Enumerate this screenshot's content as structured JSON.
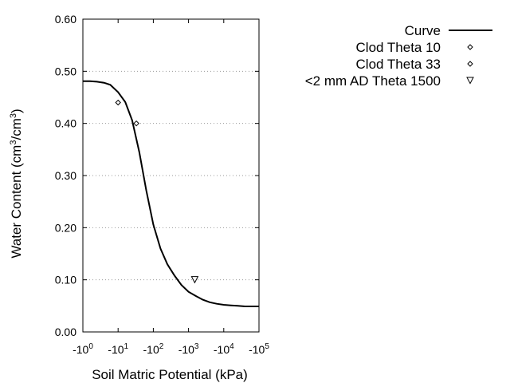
{
  "chart_data": {
    "type": "line",
    "xlabel": "Soil Matric Potential (kPa)",
    "ylabel_main": "Water Content (cm",
    "ylabel_sup1": "3",
    "ylabel_mid": "/cm",
    "ylabel_sup2": "3",
    "ylabel_end": ")",
    "x_scale": "log",
    "x_range_abs_kpa": [
      1,
      100000
    ],
    "x_ticks": [
      {
        "base": "-10",
        "exp": "0",
        "value": -1
      },
      {
        "base": "-10",
        "exp": "1",
        "value": -10
      },
      {
        "base": "-10",
        "exp": "2",
        "value": -100
      },
      {
        "base": "-10",
        "exp": "3",
        "value": -1000
      },
      {
        "base": "-10",
        "exp": "4",
        "value": -10000
      },
      {
        "base": "-10",
        "exp": "5",
        "value": -100000
      }
    ],
    "ylim": [
      0,
      0.6
    ],
    "y_ticks": [
      {
        "value": 0.0,
        "label": "0.00"
      },
      {
        "value": 0.1,
        "label": "0.10"
      },
      {
        "value": 0.2,
        "label": "0.20"
      },
      {
        "value": 0.3,
        "label": "0.30"
      },
      {
        "value": 0.4,
        "label": "0.40"
      },
      {
        "value": 0.5,
        "label": "0.50"
      },
      {
        "value": 0.6,
        "label": "0.60"
      }
    ],
    "grid": "horizontal dotted",
    "legend_position": "top-right, outside plot",
    "series": [
      {
        "name": "Curve",
        "kind": "line",
        "x": [
          -1,
          -1.6,
          -2.5,
          -4,
          -6,
          -10,
          -16,
          -25,
          -40,
          -63,
          -100,
          -160,
          -250,
          -400,
          -630,
          -1000,
          -1600,
          -2500,
          -4000,
          -6300,
          -10000,
          -16000,
          -25000,
          -40000,
          -63000,
          -100000
        ],
        "y": [
          0.481,
          0.481,
          0.48,
          0.478,
          0.474,
          0.46,
          0.441,
          0.406,
          0.345,
          0.272,
          0.206,
          0.16,
          0.13,
          0.108,
          0.09,
          0.077,
          0.069,
          0.062,
          0.057,
          0.054,
          0.052,
          0.051,
          0.05,
          0.049,
          0.049,
          0.049
        ]
      },
      {
        "name": "Clod Theta 10",
        "kind": "scatter",
        "marker": "diamond",
        "x": [
          -10
        ],
        "y": [
          0.44
        ]
      },
      {
        "name": "Clod Theta 33",
        "kind": "scatter",
        "marker": "diamond",
        "x": [
          -33
        ],
        "y": [
          0.4
        ]
      },
      {
        "name": "<2 mm AD Theta 1500",
        "kind": "scatter",
        "marker": "triangle-down",
        "x": [
          -1500
        ],
        "y": [
          0.1
        ]
      }
    ]
  }
}
